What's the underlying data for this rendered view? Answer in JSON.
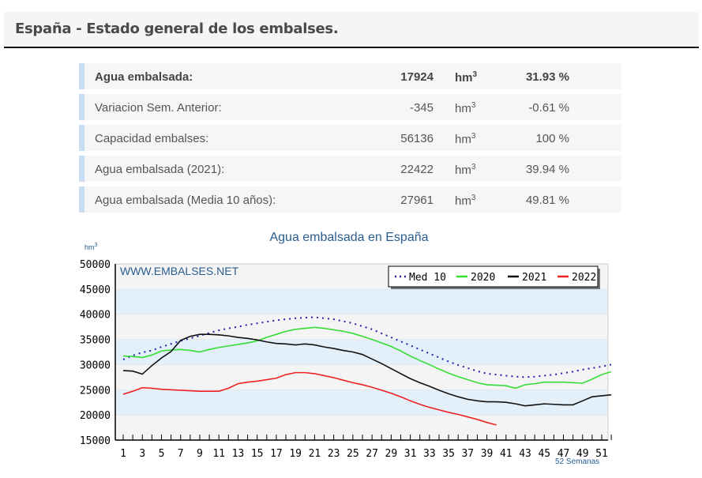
{
  "header": {
    "title": "España - Estado general de los embalses."
  },
  "summary": {
    "rows": [
      {
        "label": "Agua embalsada:",
        "value": "17924",
        "unit": "hm",
        "unit_sup": "3",
        "percent": "31.93 %",
        "bold": true
      },
      {
        "label": "Variacion Sem. Anterior:",
        "value": "-345",
        "unit": "hm",
        "unit_sup": "3",
        "percent": "-0.61 %"
      },
      {
        "label": "Capacidad embalses:",
        "value": "56136",
        "unit": "hm",
        "unit_sup": "3",
        "percent": "100 %"
      },
      {
        "label": "Agua embalsada (2021):",
        "value": "22422",
        "unit": "hm",
        "unit_sup": "3",
        "percent": "39.94 %"
      },
      {
        "label": "Agua embalsada (Media 10 años):",
        "value": "27961",
        "unit": "hm",
        "unit_sup": "3",
        "percent": "49.81 %"
      }
    ]
  },
  "chart_data": {
    "type": "line",
    "title": "Agua embalsada en España",
    "ylabel": "hm",
    "ylabel_sup": "3",
    "xlabel": "52 Semanas",
    "watermark": "WWW.EMBALSES.NET",
    "ylim": [
      15000,
      50000
    ],
    "yticks": [
      50000,
      45000,
      40000,
      35000,
      30000,
      25000,
      20000,
      15000
    ],
    "xticks": [
      1,
      3,
      5,
      7,
      9,
      11,
      13,
      15,
      17,
      19,
      21,
      23,
      25,
      27,
      29,
      31,
      33,
      35,
      37,
      39,
      41,
      43,
      45,
      47,
      49,
      51
    ],
    "x_range": [
      1,
      52
    ],
    "grid": true,
    "legend": "top-right",
    "series": [
      {
        "name": "Med 10",
        "color": "#2222aa",
        "style": "dotted",
        "values": [
          31000,
          31800,
          32400,
          32800,
          33500,
          34100,
          34700,
          35200,
          35700,
          36300,
          36800,
          37200,
          37500,
          37900,
          38200,
          38500,
          38800,
          39000,
          39200,
          39300,
          39400,
          39200,
          39000,
          38600,
          38200,
          37600,
          37000,
          36200,
          35400,
          34600,
          33800,
          33000,
          32200,
          31400,
          30600,
          29900,
          29300,
          28700,
          28200,
          28000,
          27800,
          27600,
          27500,
          27600,
          27800,
          28000,
          28300,
          28600,
          29000,
          29300,
          29600,
          30000
        ]
      },
      {
        "name": "2020",
        "color": "#33dd33",
        "style": "solid",
        "values": [
          31700,
          31600,
          31400,
          31900,
          32700,
          32900,
          33000,
          32800,
          32500,
          33000,
          33400,
          33700,
          34000,
          34300,
          34700,
          35400,
          36000,
          36600,
          37000,
          37200,
          37400,
          37200,
          36900,
          36600,
          36200,
          35600,
          35000,
          34300,
          33600,
          32700,
          31700,
          30800,
          30000,
          29100,
          28300,
          27600,
          27000,
          26400,
          26000,
          25900,
          25800,
          25300,
          26000,
          26200,
          26500,
          26500,
          26500,
          26400,
          26300,
          27100,
          28000,
          28600
        ]
      },
      {
        "name": "2021",
        "color": "#111111",
        "style": "solid",
        "values": [
          28800,
          28700,
          28100,
          29800,
          31300,
          32600,
          34800,
          35600,
          36000,
          36000,
          35900,
          35700,
          35400,
          35200,
          34900,
          34500,
          34200,
          34100,
          33900,
          34100,
          33900,
          33500,
          33200,
          32800,
          32500,
          32000,
          31100,
          30200,
          29200,
          28200,
          27200,
          26400,
          25700,
          24900,
          24200,
          23600,
          23100,
          22800,
          22600,
          22600,
          22500,
          22200,
          21800,
          22000,
          22200,
          22100,
          22000,
          22000,
          22800,
          23600,
          23800,
          24000
        ]
      },
      {
        "name": "2022",
        "color": "#ee2222",
        "style": "solid",
        "values": [
          24100,
          24700,
          25400,
          25300,
          25100,
          25000,
          24900,
          24800,
          24700,
          24700,
          24700,
          25300,
          26200,
          26500,
          26700,
          27000,
          27300,
          28000,
          28400,
          28400,
          28200,
          27800,
          27400,
          26900,
          26400,
          26000,
          25500,
          24900,
          24300,
          23600,
          22800,
          22100,
          21500,
          21000,
          20500,
          20100,
          19600,
          19100,
          18500,
          18000
        ]
      }
    ]
  }
}
